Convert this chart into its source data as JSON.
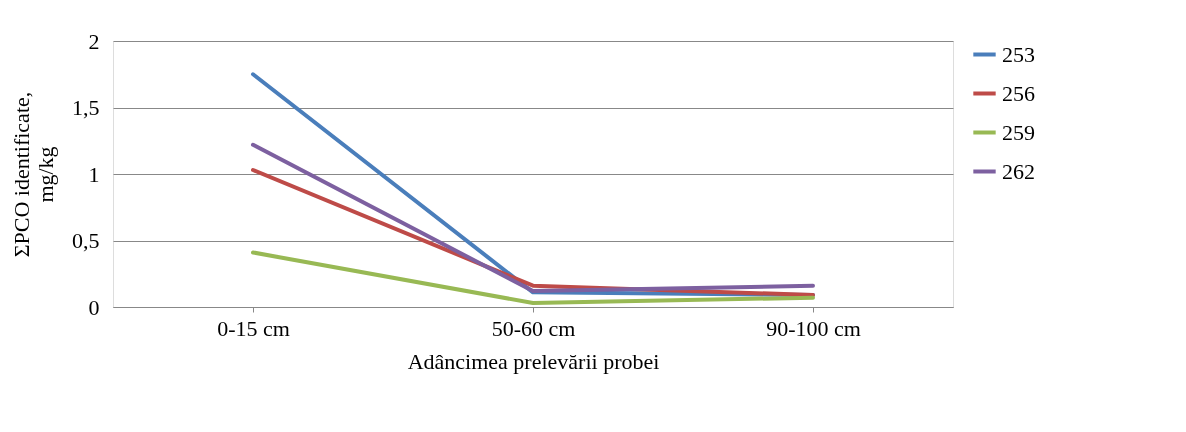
{
  "chart_data": {
    "type": "line",
    "xlabel": "Adâncimea prelevării probei",
    "ylabel": [
      "ΣPCO identificate,",
      "mg/kg"
    ],
    "categories": [
      "0-15 cm",
      "50-60 cm",
      "90-100 cm"
    ],
    "series": [
      {
        "name": "253",
        "color": "#4a7ebb",
        "values": [
          1.75,
          0.11,
          0.09
        ]
      },
      {
        "name": "256",
        "color": "#be4b48",
        "values": [
          1.03,
          0.16,
          0.09
        ]
      },
      {
        "name": "259",
        "color": "#98b954",
        "values": [
          0.41,
          0.03,
          0.07
        ]
      },
      {
        "name": "262",
        "color": "#7d60a0",
        "values": [
          1.22,
          0.12,
          0.16
        ]
      }
    ],
    "ylim": [
      0,
      2
    ],
    "yticks": [
      {
        "value": 0,
        "label": "0"
      },
      {
        "value": 0.5,
        "label": "0,5"
      },
      {
        "value": 1,
        "label": "1"
      },
      {
        "value": 1.5,
        "label": "1,5"
      },
      {
        "value": 2,
        "label": "2"
      }
    ],
    "grid": "y",
    "legend": "right",
    "marker": "none",
    "line_style": "solid"
  }
}
